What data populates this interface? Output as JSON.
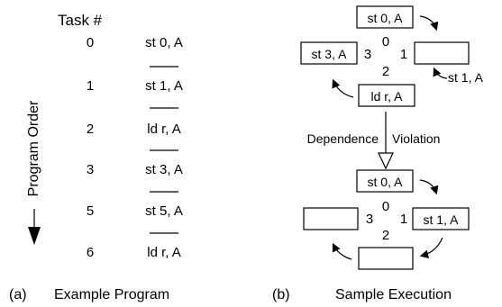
{
  "panel_a": {
    "header": "Task #",
    "axis_label": "Program Order",
    "rows": [
      {
        "task": "0",
        "instr": "st 0, A"
      },
      {
        "task": "1",
        "instr": "st 1, A"
      },
      {
        "task": "2",
        "instr": "ld r, A"
      },
      {
        "task": "3",
        "instr": "st 3, A"
      },
      {
        "task": "5",
        "instr": "st 5, A"
      },
      {
        "task": "6",
        "instr": "ld r, A"
      }
    ],
    "caption_letter": "(a)",
    "caption_text": "Example Program"
  },
  "panel_b": {
    "top_ring": {
      "top": "st 0, A",
      "left": "st 3, A",
      "right": "",
      "bottom": "ld r, A",
      "outside_label": "st 1, A",
      "labels": [
        "0",
        "1",
        "2",
        "3"
      ]
    },
    "dependence_label": "Dependence",
    "violation_label": "Violation",
    "bottom_ring": {
      "top": "st 0, A",
      "left": "",
      "right": "st 1, A",
      "bottom": "",
      "labels": [
        "0",
        "1",
        "2",
        "3"
      ]
    },
    "caption_letter": "(b)",
    "caption_text": "Sample Execution"
  }
}
